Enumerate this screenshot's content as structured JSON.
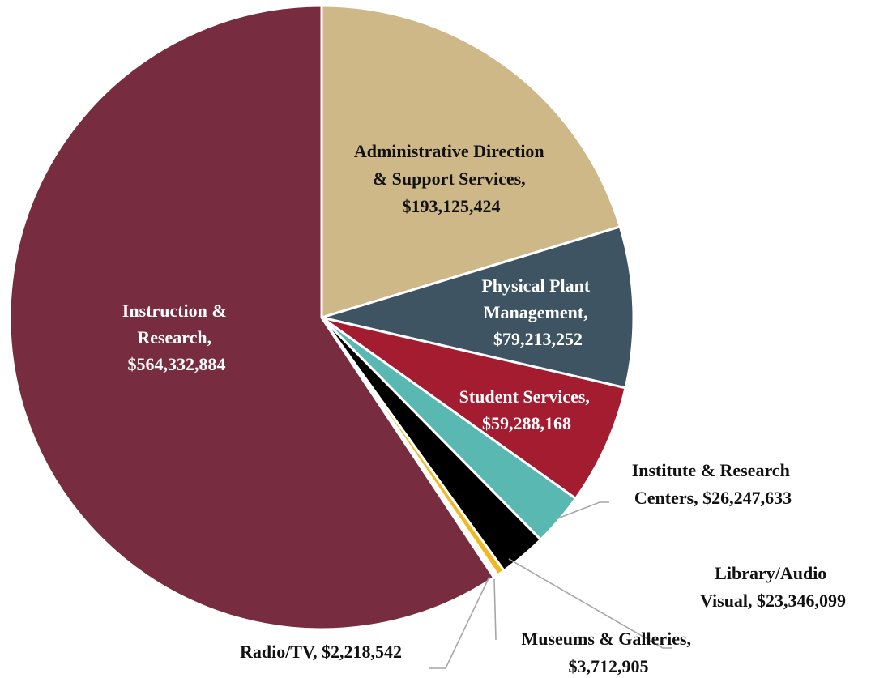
{
  "chart_data": {
    "type": "pie",
    "title": "",
    "slices": [
      {
        "name": "Administrative Direction & Support Services",
        "value": 193125424,
        "label_lines": [
          "Administrative Direction",
          "& Support Services,",
          "$193,125,424"
        ],
        "color": "#cfb887"
      },
      {
        "name": "Physical Plant Management",
        "value": 79213252,
        "label_lines": [
          "Physical Plant",
          "Management,",
          "$79,213,252"
        ],
        "color": "#3f5463"
      },
      {
        "name": "Student Services",
        "value": 59288168,
        "label_lines": [
          "Student Services,",
          "$59,288,168"
        ],
        "color": "#a31c30"
      },
      {
        "name": "Institute & Research Centers",
        "value": 26247633,
        "label_lines": [
          "Institute & Research",
          "Centers,  $26,247,633"
        ],
        "color": "#5ab8b2"
      },
      {
        "name": "Library/Audio Visual",
        "value": 23346099,
        "label_lines": [
          "Library/Audio",
          "Visual,  $23,346,099"
        ],
        "color": "#000000"
      },
      {
        "name": "Museums & Galleries",
        "value": 3712905,
        "label_lines": [
          "Museums & Galleries,",
          "$3,712,905"
        ],
        "color": "#f2b820"
      },
      {
        "name": "Radio/TV",
        "value": 2218542,
        "label_lines": [
          "Radio/TV,  $2,218,542"
        ],
        "color": "#ffffff"
      },
      {
        "name": "Instruction & Research",
        "value": 564332884,
        "label_lines": [
          "Instruction &",
          "Research,",
          "$564,332,884"
        ],
        "color": "#772d3f"
      }
    ],
    "legend": "none",
    "start_angle": "12 o'clock",
    "direction": "clockwise"
  }
}
